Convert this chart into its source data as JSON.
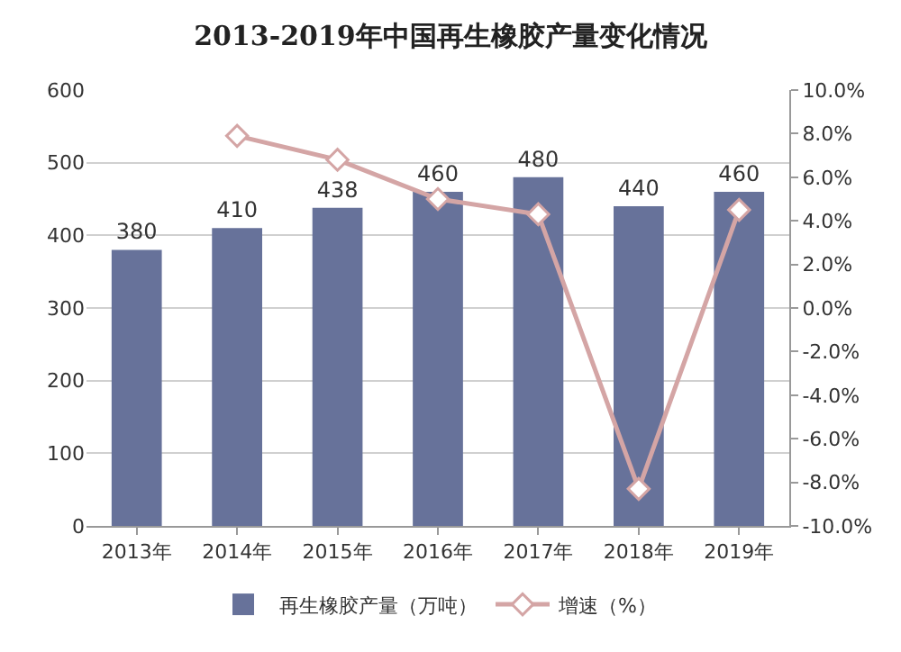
{
  "chart_data": {
    "type": "bar",
    "title": "2013-2019年中国再生橡胶产量变化情况",
    "categories": [
      "2013年",
      "2014年",
      "2015年",
      "2016年",
      "2017年",
      "2018年",
      "2019年"
    ],
    "series": [
      {
        "name": "再生橡胶产量（万吨）",
        "color": "#67729a",
        "values": [
          380,
          410,
          438,
          460,
          480,
          440,
          460
        ],
        "value_labels": [
          "380",
          "410",
          "438",
          "460",
          "480",
          "440",
          "460"
        ]
      },
      {
        "name": "增速（%）",
        "type": "line",
        "axis": "y2",
        "color": "#d4a5a5",
        "marker": "diamond",
        "line_style": "solid",
        "values": [
          null,
          7.9,
          6.8,
          5.0,
          4.3,
          -8.3,
          4.5
        ]
      }
    ],
    "ylim": [
      0,
      600
    ],
    "yticks": [
      0,
      100,
      200,
      300,
      400,
      500,
      600
    ],
    "y2lim": [
      -10,
      10
    ],
    "y2ticks": [
      {
        "value": -10,
        "label": "-10.0%"
      },
      {
        "value": -8,
        "label": "-8.0%"
      },
      {
        "value": -6,
        "label": "-6.0%"
      },
      {
        "value": -4,
        "label": "-4.0%"
      },
      {
        "value": -2,
        "label": "-2.0%"
      },
      {
        "value": 0,
        "label": "0.0%"
      },
      {
        "value": 2,
        "label": "2.0%"
      },
      {
        "value": 4,
        "label": "4.0%"
      },
      {
        "value": 6,
        "label": "6.0%"
      },
      {
        "value": 8,
        "label": "8.0%"
      },
      {
        "value": 10,
        "label": "10.0%"
      }
    ],
    "grid": "y",
    "legend": "bottom"
  }
}
